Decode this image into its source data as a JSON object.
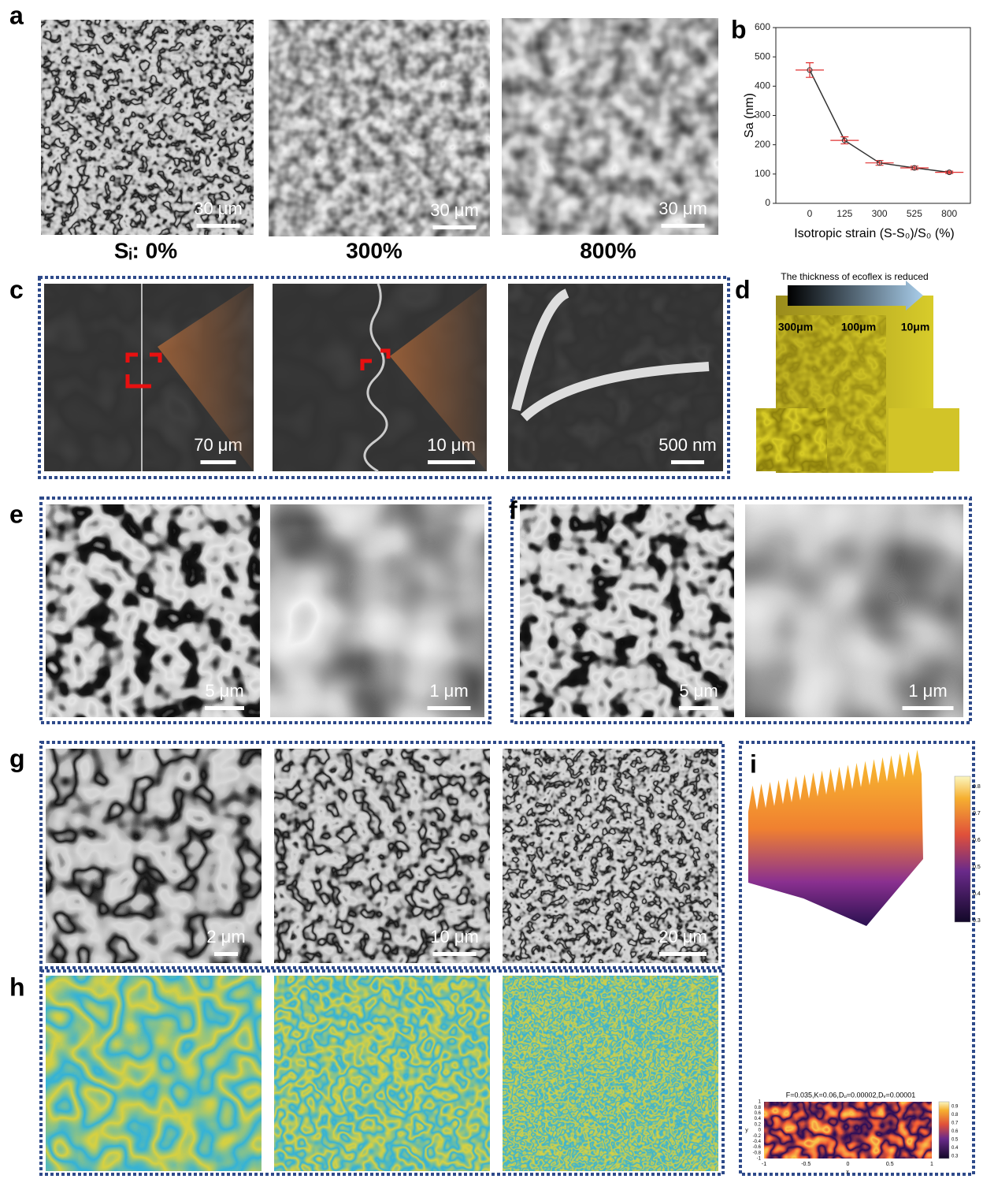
{
  "panel_labels": [
    "a",
    "b",
    "c",
    "d",
    "e",
    "f",
    "g",
    "h",
    "i"
  ],
  "panel_a": {
    "scale_bars": [
      "30 μm",
      "30 μm",
      "30 μm"
    ],
    "captions": [
      "Sᵢ: 0%",
      "300%",
      "800%"
    ]
  },
  "chart_data": {
    "type": "line",
    "categories": [
      "0",
      "125",
      "300",
      "525",
      "800"
    ],
    "values": [
      455,
      215,
      138,
      121,
      106
    ],
    "errors": [
      25,
      12,
      8,
      6,
      4
    ],
    "color": "#333333",
    "error_color": "#e03030",
    "ylim": [
      0,
      600
    ],
    "yticks": [
      0,
      100,
      200,
      300,
      400,
      500,
      600
    ],
    "xlabel": "Isotropic strain (S-S₀)/S₀ (%)",
    "ylabel": "Sa (nm)"
  },
  "panel_c": {
    "scale_bars": [
      "70 μm",
      "10 μm",
      "500 nm"
    ]
  },
  "panel_d": {
    "title": "The thickness of ecoflex is reduced",
    "thicknesses": [
      "300μm",
      "100μm",
      "10μm"
    ]
  },
  "panel_e": {
    "scale_bars": [
      "5 μm",
      "1 μm"
    ]
  },
  "panel_f": {
    "scale_bars": [
      "5 μm",
      "1 μm"
    ]
  },
  "panel_g": {
    "scale_bars": [
      "2 μm",
      "10 μm",
      "20 μm"
    ]
  },
  "panel_i": {
    "colorbar_top_ticks": [
      "0.8",
      "0.7",
      "0.6",
      "0.5",
      "0.4",
      "0.3"
    ],
    "plot_title": "F=0.035,K=0.06,Dᵤ=0.00002,Dᵥ=0.00001",
    "colorbar_bottom_ticks": [
      "0.9",
      "0.8",
      "0.7",
      "0.6",
      "0.5",
      "0.4",
      "0.3"
    ],
    "x_ticks": [
      "-1",
      "-0.5",
      "0",
      "0.5",
      "1"
    ],
    "y_ticks": [
      "1",
      "0.8",
      "0.6",
      "0.4",
      "0.2",
      "0",
      "-0.2",
      "-0.4",
      "-0.6",
      "-0.8",
      "-1"
    ],
    "x_label": "x",
    "y_label": "y"
  }
}
